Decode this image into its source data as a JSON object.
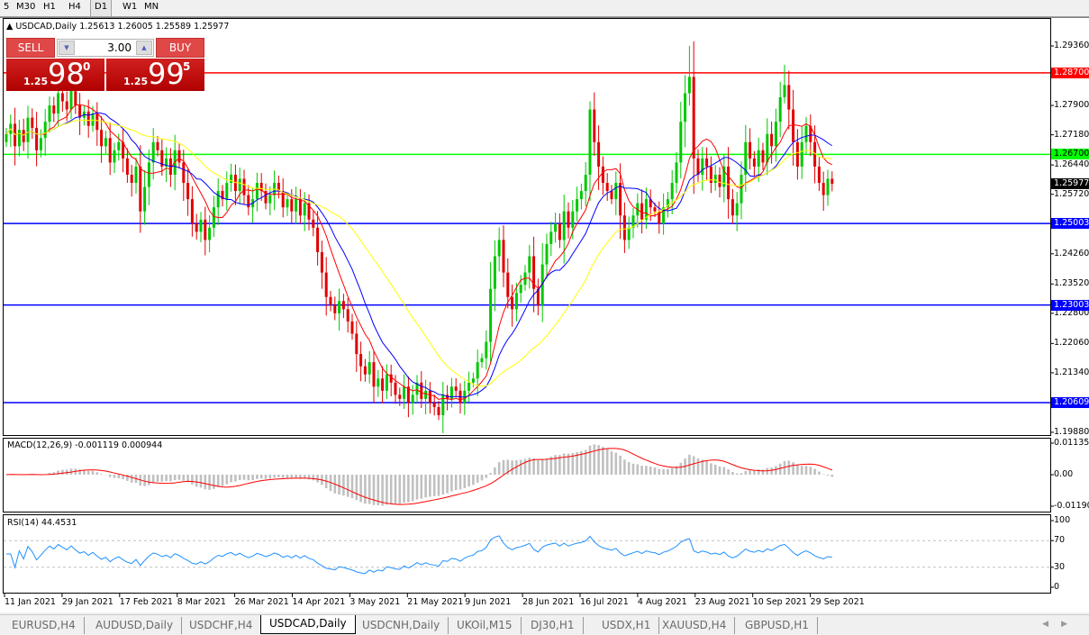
{
  "toolbar": {
    "timeframes": [
      "5",
      "M30",
      "H1",
      "H4",
      "D1",
      "W1",
      "MN"
    ],
    "active": "D1"
  },
  "chart": {
    "title": "USDCAD,Daily",
    "ohlc_readout": "1.25613 1.26005 1.25589 1.25977",
    "trade_panel": {
      "sell_label": "SELL",
      "buy_label": "BUY",
      "lot": "3.00",
      "sell_prefix": "1.25",
      "sell_big": "98",
      "sell_sup": "0",
      "buy_prefix": "1.25",
      "buy_big": "99",
      "buy_sup": "5"
    },
    "price_axis": [
      "1.29360",
      "1.27900",
      "1.27180",
      "1.26440",
      "1.25720",
      "1.24260",
      "1.23520",
      "1.22800",
      "1.22060",
      "1.21340",
      "1.19880"
    ],
    "levels": [
      {
        "price": "1.28700",
        "color": "#ff0000"
      },
      {
        "price": "1.26700",
        "color": "#00ff00"
      },
      {
        "price": "1.25003",
        "color": "#0000ff"
      },
      {
        "price": "1.23003",
        "color": "#0000ff"
      },
      {
        "price": "1.20609",
        "color": "#0000ff"
      }
    ],
    "current_price": "1.25977",
    "dates": [
      "11 Jan 2021",
      "29 Jan 2021",
      "17 Feb 2021",
      "8 Mar 2021",
      "26 Mar 2021",
      "14 Apr 2021",
      "3 May 2021",
      "21 May 2021",
      "9 Jun 2021",
      "28 Jun 2021",
      "16 Jul 2021",
      "4 Aug 2021",
      "23 Aug 2021",
      "10 Sep 2021",
      "29 Sep 2021"
    ],
    "macd": {
      "label": "MACD(12,26,9) -0.001119 0.000944",
      "axis": [
        "0.01135",
        "0.00",
        "-0.011904"
      ]
    },
    "rsi": {
      "label": "RSI(14) 44.4531",
      "axis": [
        "100",
        "70",
        "30",
        "0"
      ]
    },
    "colors": {
      "bull": "#00c800",
      "bear": "#e00000",
      "ma_fast": "#ff0000",
      "ma_mid": "#0000ff",
      "ma_slow": "#ffff00",
      "macd_hist": "#c0c0c0",
      "macd_signal": "#ff0000",
      "rsi": "#1e90ff"
    }
  },
  "chart_data": {
    "type": "candlestick",
    "symbol": "USDCAD",
    "timeframe": "Daily",
    "ylim": [
      1.1988,
      1.2936
    ],
    "closes": [
      1.272,
      1.2745,
      1.269,
      1.273,
      1.27,
      1.276,
      1.2735,
      1.268,
      1.271,
      1.275,
      1.279,
      1.277,
      1.282,
      1.28,
      1.278,
      1.2825,
      1.279,
      1.276,
      1.2775,
      1.274,
      1.277,
      1.273,
      1.269,
      1.271,
      1.265,
      1.268,
      1.27,
      1.266,
      1.262,
      1.26,
      1.264,
      1.253,
      1.259,
      1.265,
      1.27,
      1.268,
      1.264,
      1.266,
      1.262,
      1.268,
      1.265,
      1.26,
      1.256,
      1.25,
      1.248,
      1.251,
      1.246,
      1.249,
      1.254,
      1.258,
      1.256,
      1.26,
      1.262,
      1.258,
      1.261,
      1.257,
      1.254,
      1.256,
      1.26,
      1.258,
      1.255,
      1.257,
      1.26,
      1.258,
      1.254,
      1.256,
      1.253,
      1.256,
      1.252,
      1.255,
      1.251,
      1.249,
      1.243,
      1.238,
      1.232,
      1.23,
      1.228,
      1.231,
      1.229,
      1.226,
      1.223,
      1.218,
      1.215,
      1.213,
      1.216,
      1.21,
      1.212,
      1.209,
      1.213,
      1.211,
      1.208,
      1.207,
      1.21,
      1.206,
      1.208,
      1.211,
      1.207,
      1.209,
      1.206,
      1.205,
      1.203,
      1.208,
      1.207,
      1.21,
      1.209,
      1.206,
      1.209,
      1.211,
      1.212,
      1.216,
      1.217,
      1.221,
      1.234,
      1.242,
      1.246,
      1.238,
      1.232,
      1.229,
      1.233,
      1.235,
      1.238,
      1.242,
      1.234,
      1.23,
      1.24,
      1.245,
      1.248,
      1.25,
      1.246,
      1.253,
      1.249,
      1.253,
      1.256,
      1.258,
      1.262,
      1.278,
      1.27,
      1.264,
      1.26,
      1.258,
      1.256,
      1.26,
      1.252,
      1.246,
      1.249,
      1.252,
      1.255,
      1.251,
      1.256,
      1.254,
      1.253,
      1.25,
      1.254,
      1.256,
      1.26,
      1.265,
      1.275,
      1.282,
      1.286,
      1.266,
      1.262,
      1.266,
      1.264,
      1.26,
      1.262,
      1.259,
      1.264,
      1.256,
      1.252,
      1.255,
      1.262,
      1.27,
      1.266,
      1.264,
      1.268,
      1.265,
      1.272,
      1.269,
      1.275,
      1.281,
      1.284,
      1.278,
      1.27,
      1.264,
      1.27,
      1.274,
      1.27,
      1.264,
      1.26,
      1.257,
      1.261,
      1.25977
    ],
    "spike_highs": [
      {
        "index": 158,
        "high": 1.2936
      },
      {
        "index": 180,
        "high": 1.289
      },
      {
        "index": 135,
        "high": 1.28
      }
    ],
    "indicators": {
      "moving_averages": [
        "fast red",
        "medium blue",
        "slow yellow"
      ],
      "macd": [
        12,
        26,
        9
      ],
      "rsi": 14
    }
  },
  "tabs": {
    "items": [
      "EURUSD,H4",
      "AUDUSD,Daily",
      "USDCHF,H4",
      "USDCAD,Daily",
      "USDCNH,Daily",
      "UKOil,M15",
      "DJ30,H1",
      "USDX,H1",
      "XAUUSD,H4",
      "GBPUSD,H1"
    ],
    "active": "USDCAD,Daily"
  }
}
